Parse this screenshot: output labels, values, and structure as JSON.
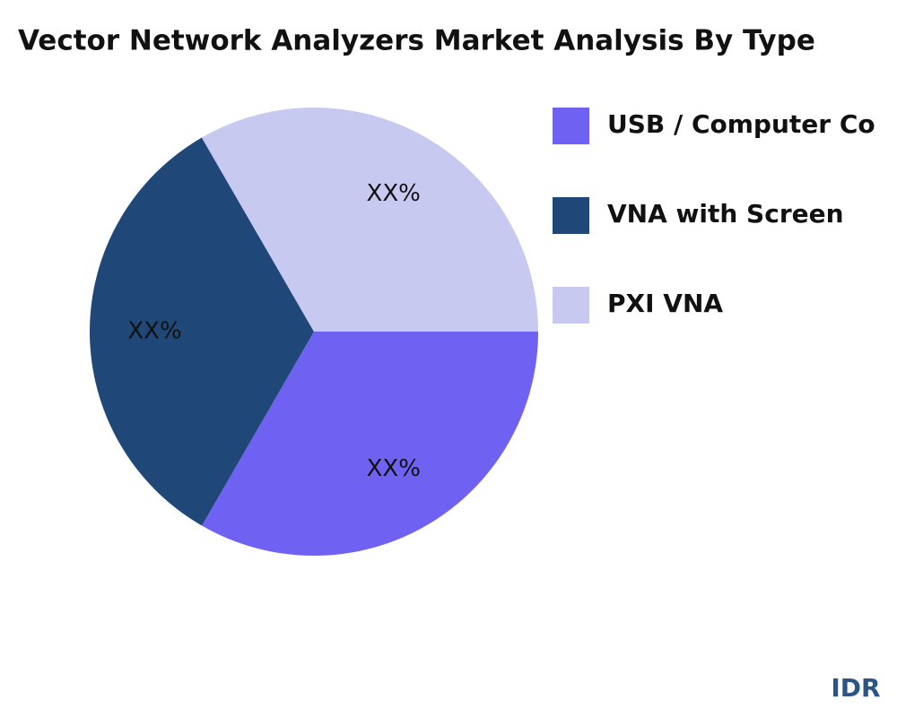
{
  "chart_data": {
    "type": "pie",
    "title": "Vector Network Analyzers Market Analysis By Type",
    "categories": [
      "USB / Computer Co",
      "VNA with Screen",
      "PXI VNA"
    ],
    "values": [
      33.33,
      33.33,
      33.34
    ],
    "value_labels": [
      "XX%",
      "XX%",
      "XX%"
    ],
    "colors": [
      "#6f61f2",
      "#1f4777",
      "#c8c9f0"
    ],
    "brand": "IDR"
  }
}
